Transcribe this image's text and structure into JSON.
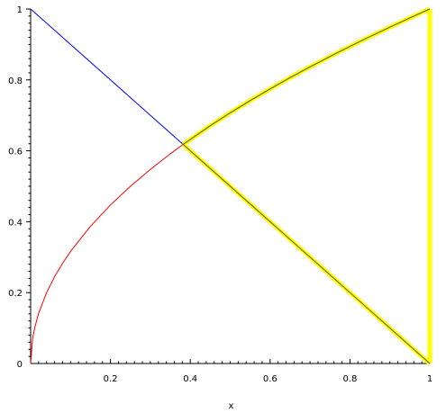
{
  "chart_data": {
    "type": "line",
    "title": "",
    "xlabel": "x",
    "ylabel": "",
    "xlim": [
      0,
      1
    ],
    "ylim": [
      0,
      1
    ],
    "grid": false,
    "x_ticks": [
      {
        "value": 0.2,
        "label": "0.2"
      },
      {
        "value": 0.4,
        "label": "0.4"
      },
      {
        "value": 0.6,
        "label": "0.6"
      },
      {
        "value": 0.8,
        "label": "0.8"
      },
      {
        "value": 1,
        "label": "1"
      }
    ],
    "y_ticks": [
      {
        "value": 0,
        "label": "0"
      },
      {
        "value": 0.2,
        "label": "0.2"
      },
      {
        "value": 0.4,
        "label": "0.4"
      },
      {
        "value": 0.6,
        "label": "0.6"
      },
      {
        "value": 0.8,
        "label": "0.8"
      },
      {
        "value": 1,
        "label": "1"
      }
    ],
    "series": [
      {
        "color": "#0000ff",
        "x": [
          0,
          0.382
        ],
        "y": [
          1,
          0.618
        ]
      },
      {
        "color": "#ff0000",
        "x": [
          0,
          0.005,
          0.01,
          0.02,
          0.04,
          0.06,
          0.08,
          0.1,
          0.15,
          0.2,
          0.25,
          0.3,
          0.35,
          0.382
        ],
        "y": [
          0,
          0.0707,
          0.1,
          0.1414,
          0.2,
          0.2449,
          0.2828,
          0.3162,
          0.3873,
          0.4472,
          0.5,
          0.5477,
          0.5916,
          0.618
        ]
      }
    ],
    "region_boundary": {
      "color": "#ffff00",
      "edge_color": "#555500",
      "upper_curve": {
        "x": [
          0.382,
          0.45,
          0.5,
          0.55,
          0.6,
          0.65,
          0.7,
          0.75,
          0.8,
          0.85,
          0.9,
          0.95,
          1
        ],
        "y": [
          0.618,
          0.6708,
          0.7071,
          0.7416,
          0.7746,
          0.8062,
          0.8367,
          0.866,
          0.8944,
          0.922,
          0.9487,
          0.9747,
          1
        ]
      },
      "lower_line": {
        "x": [
          0.382,
          1
        ],
        "y": [
          0.618,
          0
        ]
      },
      "right_edge": {
        "x": [
          1,
          1
        ],
        "y": [
          0,
          1
        ]
      }
    }
  }
}
